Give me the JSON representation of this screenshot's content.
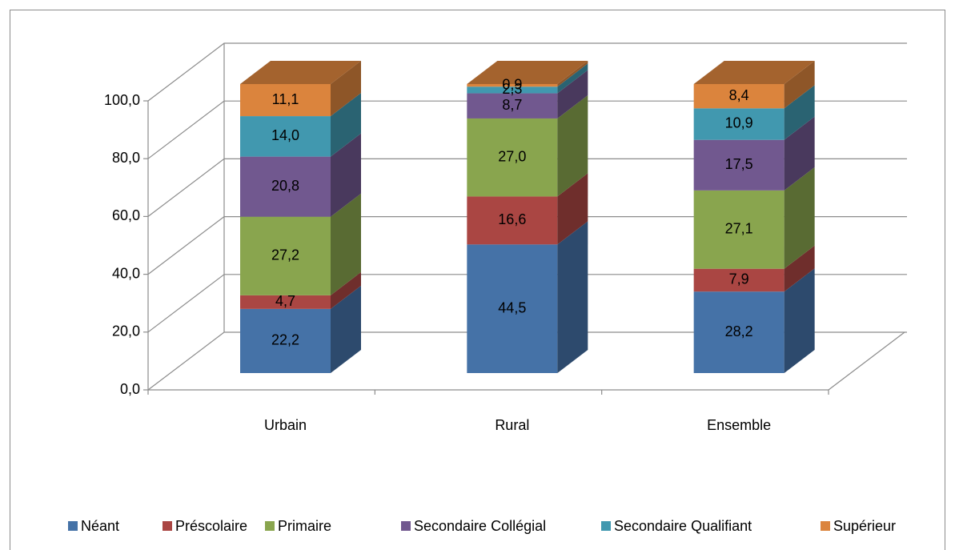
{
  "chart_data": {
    "type": "bar3d_stacked",
    "categories": [
      "Urbain",
      "Rural",
      "Ensemble"
    ],
    "series": [
      {
        "name": "Néant",
        "color": "#4572a7",
        "values": [
          22.2,
          44.5,
          28.2
        ],
        "value_labels": [
          "22,2",
          "44,5",
          "28,2"
        ]
      },
      {
        "name": "Préscolaire",
        "color": "#aa4643",
        "values": [
          4.7,
          16.6,
          7.9
        ],
        "value_labels": [
          "4,7",
          "16,6",
          "7,9"
        ]
      },
      {
        "name": "Primaire",
        "color": "#89a54e",
        "values": [
          27.2,
          27.0,
          27.1
        ],
        "value_labels": [
          "27,2",
          "27,0",
          "27,1"
        ]
      },
      {
        "name": "Secondaire Collégial",
        "color": "#71588f",
        "values": [
          20.8,
          8.7,
          17.5
        ],
        "value_labels": [
          "20,8",
          "8,7",
          "17,5"
        ]
      },
      {
        "name": "Secondaire Qualifiant",
        "color": "#4198af",
        "values": [
          14.0,
          2.3,
          10.9
        ],
        "value_labels": [
          "14,0",
          "2,3",
          "10,9"
        ]
      },
      {
        "name": "Supérieur",
        "color": "#db843d",
        "values": [
          11.1,
          0.9,
          8.4
        ],
        "value_labels": [
          "11,1",
          "0,9",
          "8,4"
        ]
      }
    ],
    "ylim": [
      0,
      100
    ],
    "yticks": [
      {
        "value": 0,
        "label": "0,0"
      },
      {
        "value": 20,
        "label": "20,0"
      },
      {
        "value": 40,
        "label": "40,0"
      },
      {
        "value": 60,
        "label": "60,0"
      },
      {
        "value": 80,
        "label": "80,0"
      },
      {
        "value": 100,
        "label": "100,0"
      }
    ],
    "grid": true,
    "legend": "bottom"
  }
}
